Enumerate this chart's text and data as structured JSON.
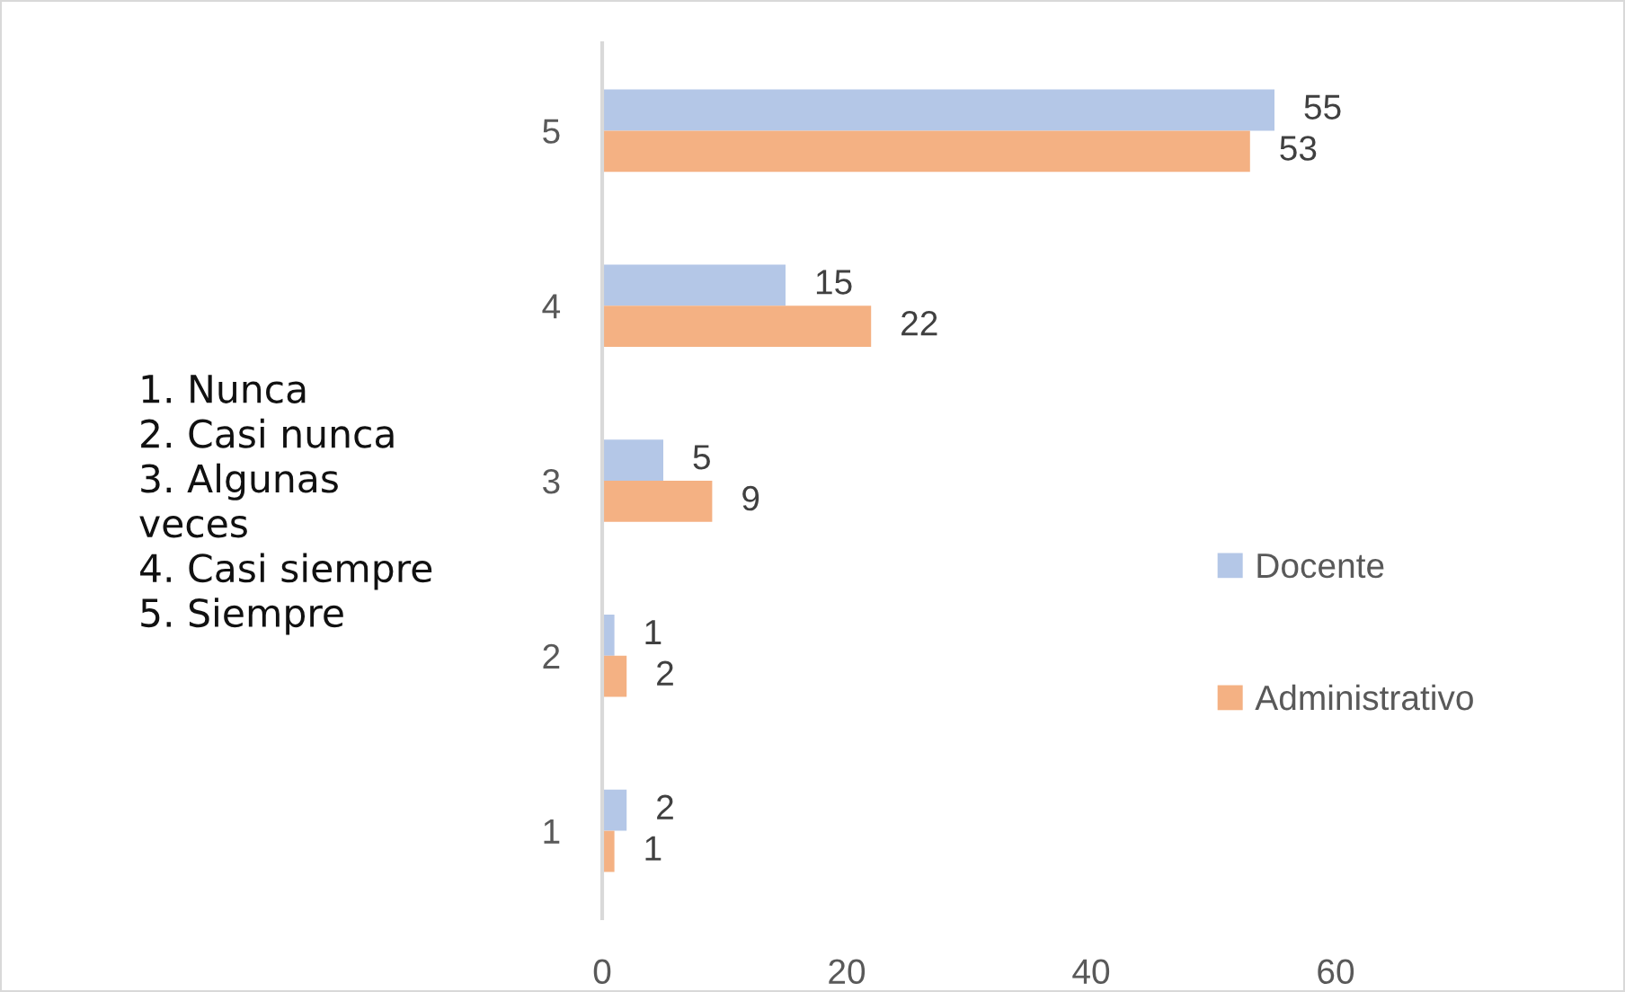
{
  "chart_data": {
    "type": "bar",
    "orientation": "horizontal",
    "categories": [
      "5",
      "4",
      "3",
      "2",
      "1"
    ],
    "series": [
      {
        "name": "Docente",
        "color": "#b4c7e7",
        "values": [
          55,
          15,
          5,
          1,
          2
        ]
      },
      {
        "name": "Administrativo",
        "color": "#f4b183",
        "values": [
          53,
          22,
          9,
          2,
          1
        ]
      }
    ],
    "xlim": [
      0,
      60
    ],
    "xticks": [
      0,
      20,
      40,
      60
    ],
    "data_labels": true,
    "legend": "right",
    "grid": false,
    "annotations": [
      "1. Nunca\n2. Casi nunca\n3. Algunas\nveces\n4. Casi siempre\n5. Siempre"
    ]
  }
}
